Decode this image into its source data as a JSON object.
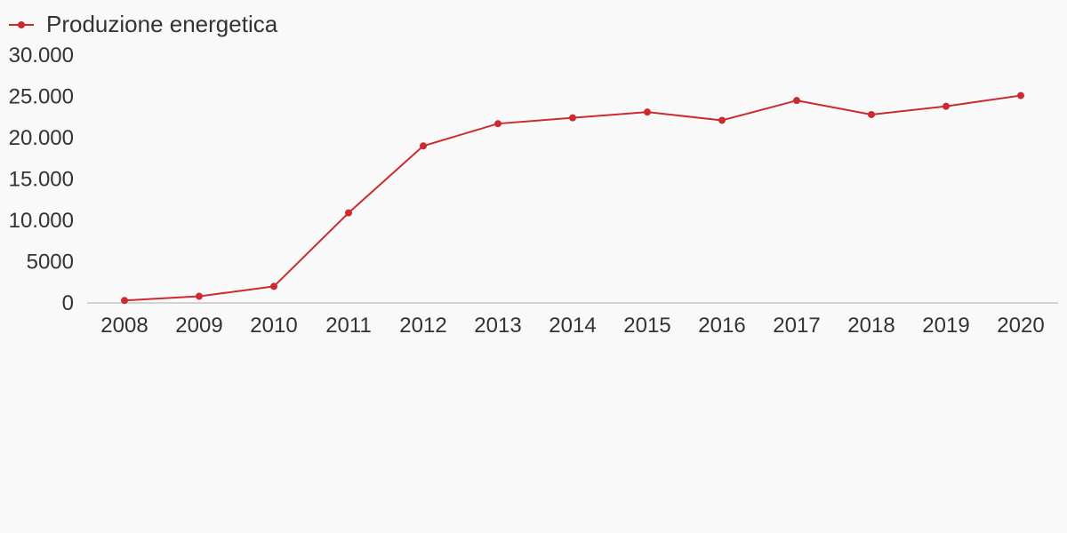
{
  "chart_data": {
    "type": "line",
    "title": "",
    "xlabel": "",
    "ylabel": "",
    "legend_position": "top-left",
    "grid": false,
    "x": [
      "2008",
      "2009",
      "2010",
      "2011",
      "2012",
      "2013",
      "2014",
      "2015",
      "2016",
      "2017",
      "2018",
      "2019",
      "2020"
    ],
    "series": [
      {
        "name": "Produzione energetica",
        "color": "#cc2a2e",
        "values": [
          300,
          800,
          2000,
          10900,
          19000,
          21700,
          22400,
          23100,
          22100,
          24500,
          22800,
          23800,
          25100
        ]
      }
    ],
    "ylim": [
      0,
      30000
    ],
    "yticks": [
      {
        "value": 0,
        "label": "0"
      },
      {
        "value": 5000,
        "label": "5000"
      },
      {
        "value": 10000,
        "label": "10.000"
      },
      {
        "value": 15000,
        "label": "15.000"
      },
      {
        "value": 20000,
        "label": "20.000"
      },
      {
        "value": 25000,
        "label": "25.000"
      },
      {
        "value": 30000,
        "label": "30.000"
      }
    ],
    "axis_color": "#d3d3d3"
  }
}
